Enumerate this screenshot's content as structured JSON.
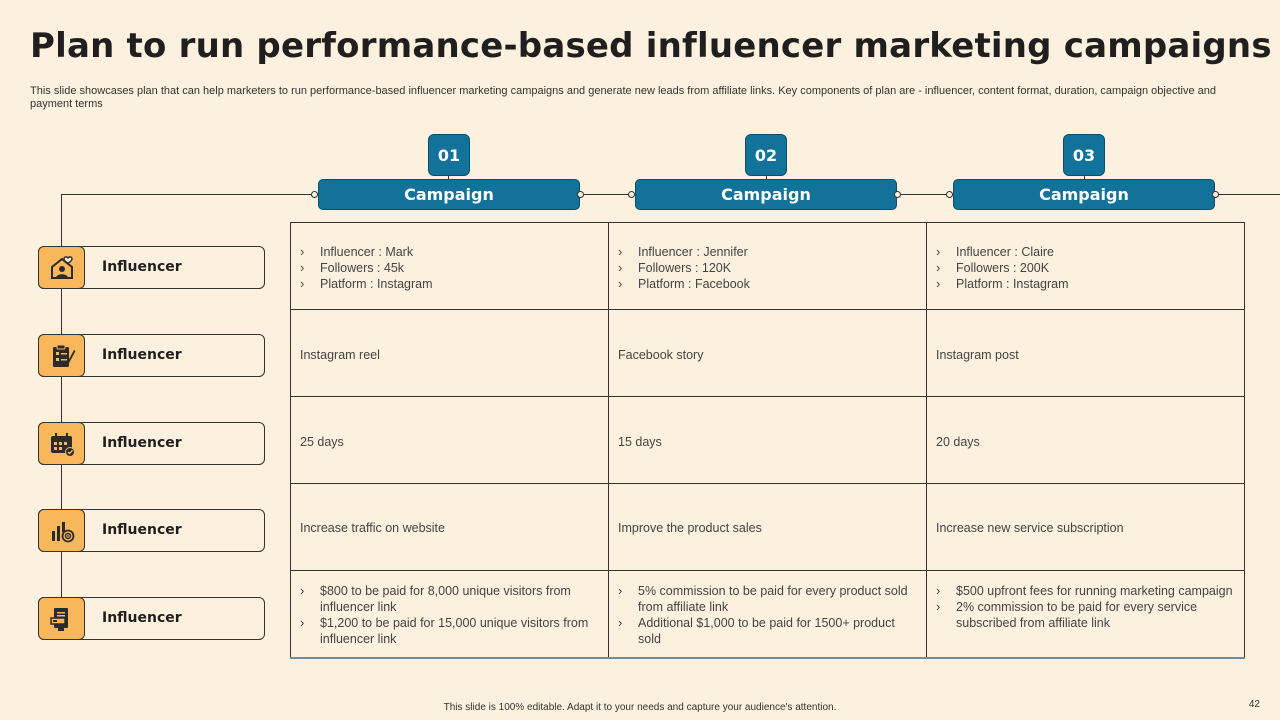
{
  "title": "Plan to run performance-based influencer marketing campaigns",
  "subtitle": "This slide showcases plan that can help marketers to run performance-based influencer marketing campaigns and generate new leads from affiliate links. Key components of plan are - influencer, content format, duration, campaign objective and payment terms",
  "columns": [
    {
      "number": "01",
      "label": "Campaign"
    },
    {
      "number": "02",
      "label": "Campaign"
    },
    {
      "number": "03",
      "label": "Campaign"
    }
  ],
  "rows": [
    {
      "label": "Influencer",
      "icon": "influencer-heart-icon"
    },
    {
      "label": "Influencer",
      "icon": "clipboard-pen-icon"
    },
    {
      "label": "Influencer",
      "icon": "calendar-check-icon"
    },
    {
      "label": "Influencer",
      "icon": "target-chart-icon"
    },
    {
      "label": "Influencer",
      "icon": "payment-document-icon"
    }
  ],
  "cells": {
    "influencer": [
      [
        "Influencer   : Mark",
        "Followers  : 45k",
        "Platform  : Instagram"
      ],
      [
        "Influencer  : Jennifer",
        "Followers  : 120K",
        "Platform  : Facebook"
      ],
      [
        "Influencer  : Claire",
        "Followers  : 200K",
        "Platform  : Instagram"
      ]
    ],
    "format": [
      "Instagram  reel",
      "Facebook  story",
      "Instagram  post"
    ],
    "duration": [
      "25 days",
      "15 days",
      "20 days"
    ],
    "objective": [
      "Increase traffic  on website",
      "Improve  the product sales",
      "Increase new service subscription"
    ],
    "payment": [
      [
        "$800 to be paid for 8,000 unique visitors from influencer link",
        "$1,200 to be paid for 15,000 unique visitors from influencer link"
      ],
      [
        "5% commission to be paid for every product sold from affiliate link",
        "Additional $1,000 to be paid for 1500+ product sold"
      ],
      [
        "$500 upfront fees for running marketing campaign",
        "2% commission to be paid for every service subscribed from affiliate link"
      ]
    ]
  },
  "footer": "This slide is 100% editable. Adapt it to your needs and capture your audience's attention.",
  "page_number": "42",
  "colors": {
    "background": "#fcf0de",
    "accent_blue": "#12729a",
    "icon_orange": "#f7b75a"
  }
}
